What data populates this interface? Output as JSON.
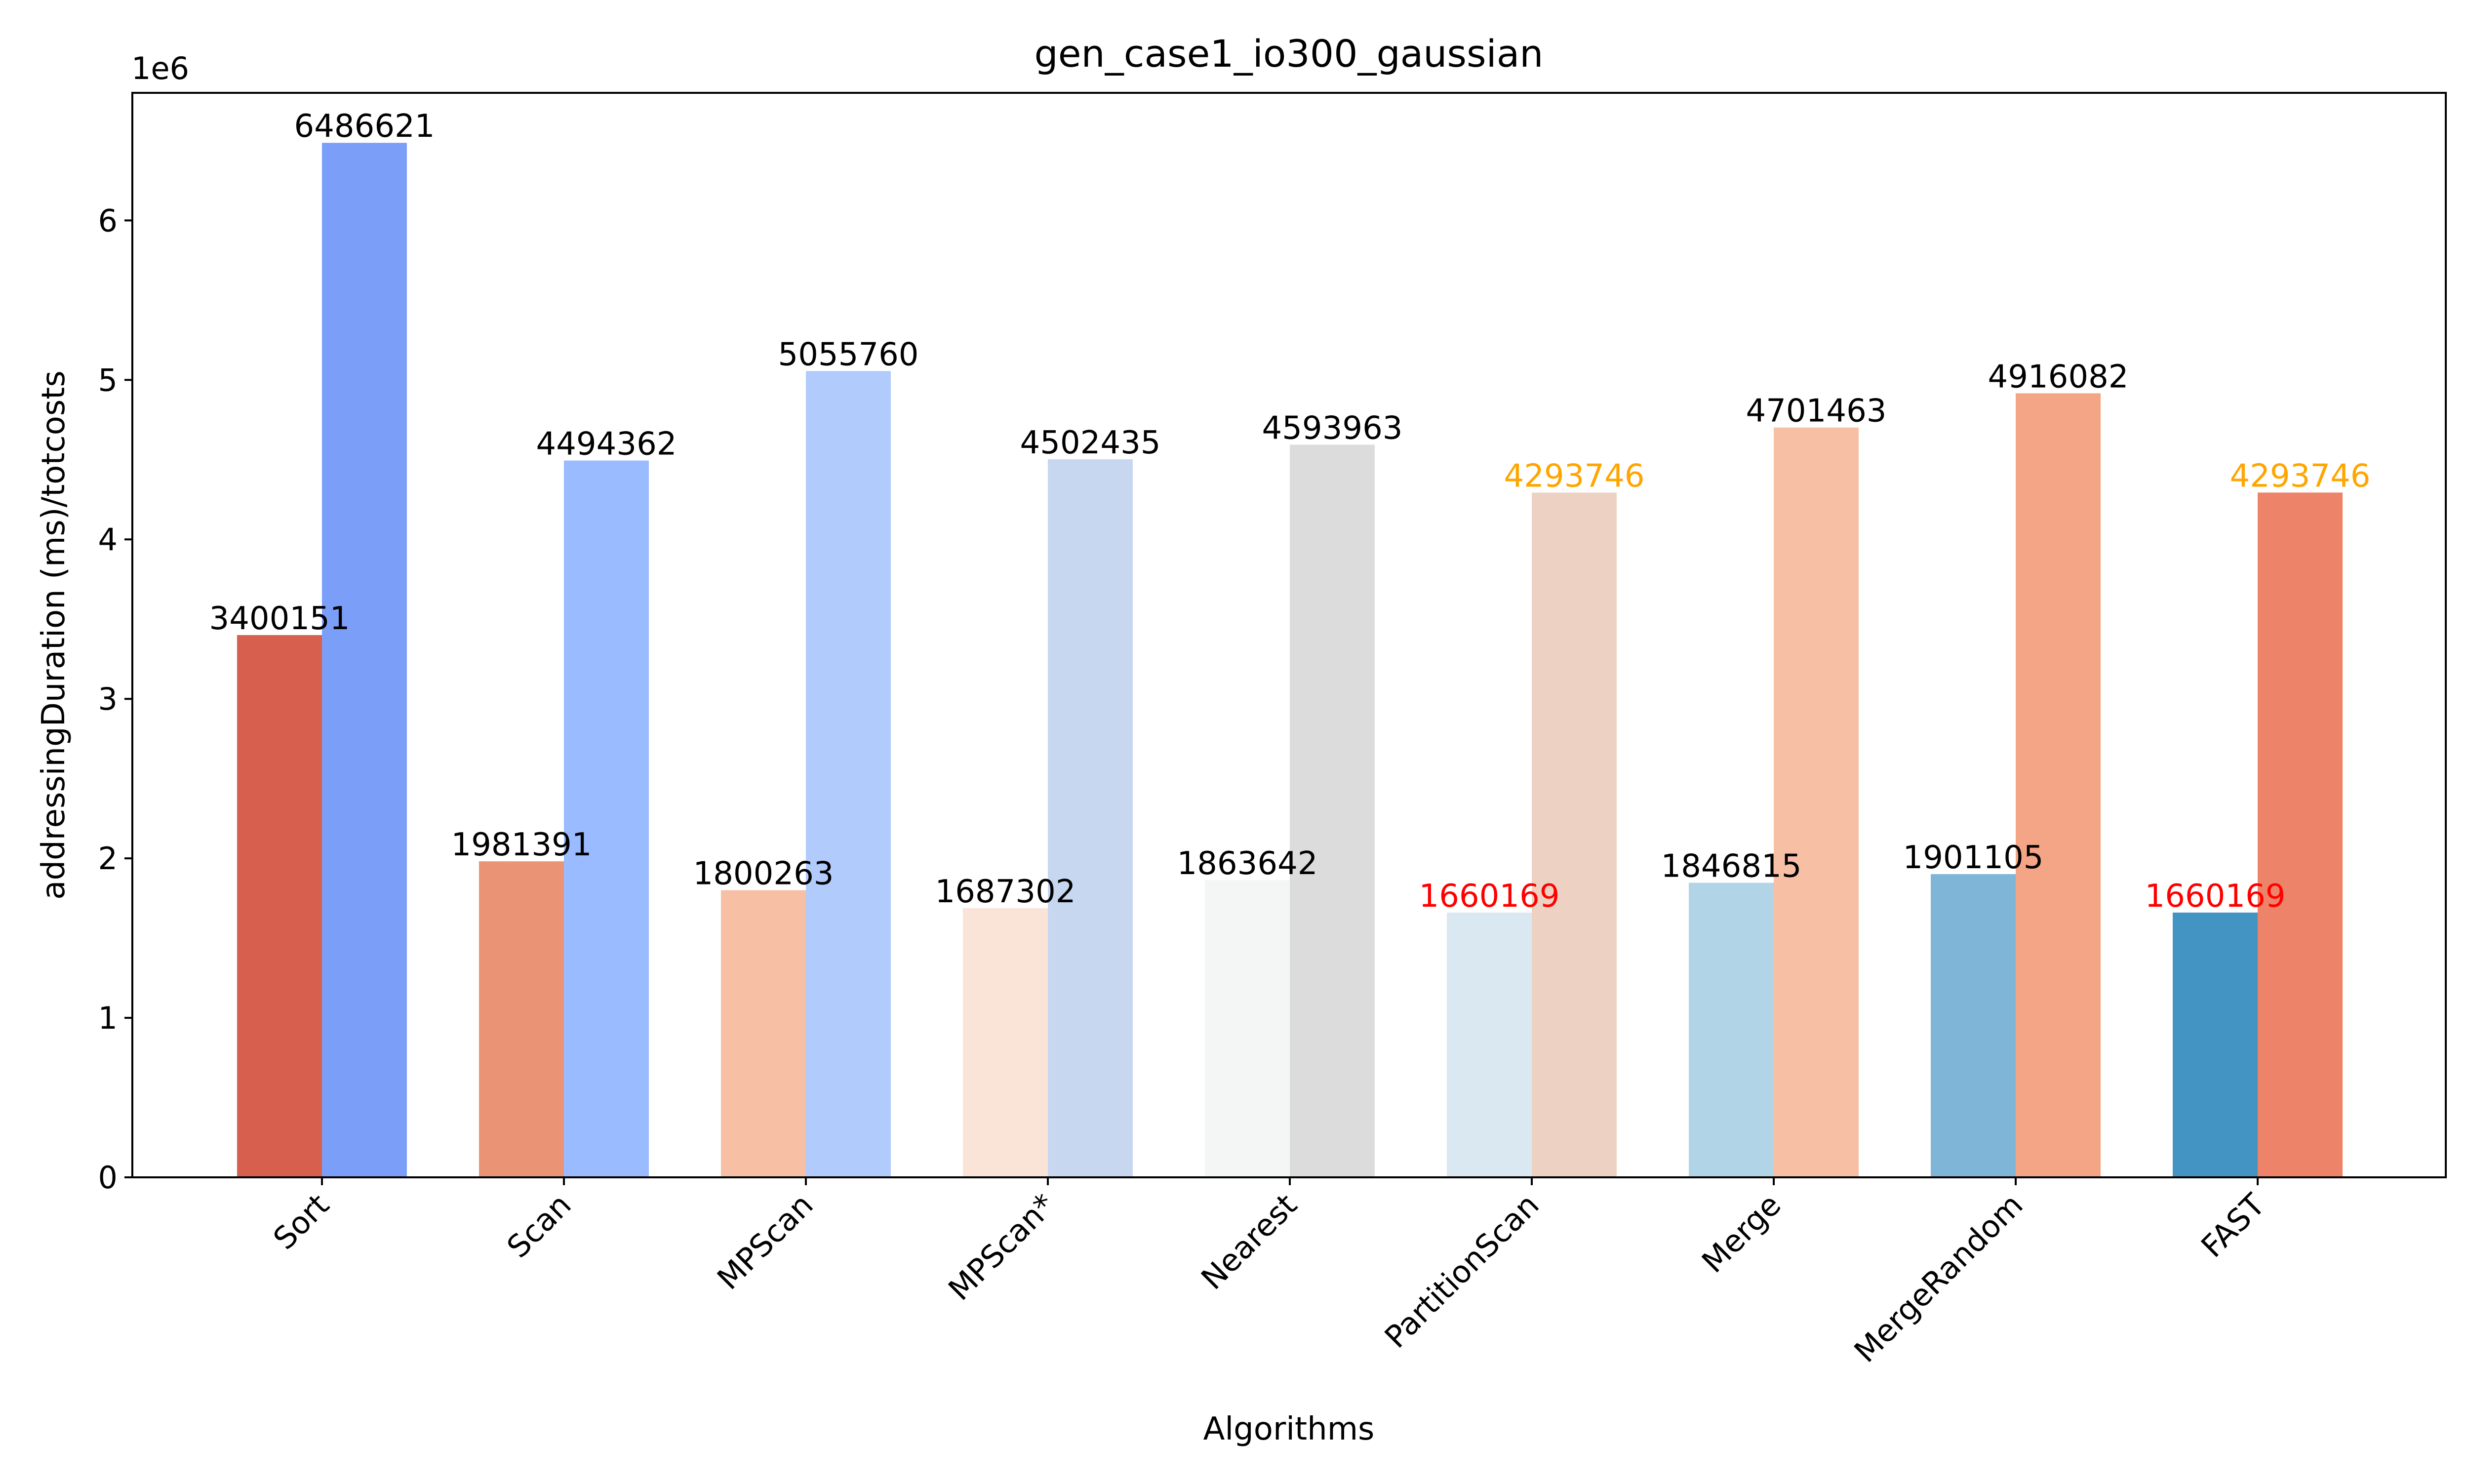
{
  "chart_data": {
    "type": "bar",
    "title": "gen_case1_io300_gaussian",
    "xlabel": "Algorithms",
    "ylabel": "addressingDuration (ms)/totcosts",
    "y_offset_label": "1e6",
    "ylim": [
      0,
      6800000
    ],
    "yticks": [
      0,
      1000000,
      2000000,
      3000000,
      4000000,
      5000000,
      6000000
    ],
    "ytick_labels": [
      "0",
      "1",
      "2",
      "3",
      "4",
      "5",
      "6"
    ],
    "grid": false,
    "categories": [
      "Sort",
      "Scan",
      "MPScan",
      "MPScan*",
      "Nearest",
      "PartitionScan",
      "Merge",
      "MergeRandom",
      "FAST"
    ],
    "series": [
      {
        "values": [
          3400151,
          1981391,
          1800263,
          1687302,
          1863642,
          1660169,
          1846815,
          1901105,
          1660169
        ],
        "colors": [
          "#d6604d",
          "#eb9475",
          "#f7bfa4",
          "#fae3d7",
          "#f4f6f6",
          "#dae8f1",
          "#b2d4e7",
          "#7fb5d6",
          "#4393c3"
        ],
        "label_colors": [
          "#000000",
          "#000000",
          "#000000",
          "#000000",
          "#000000",
          "#ff0000",
          "#000000",
          "#000000",
          "#ff0000"
        ]
      },
      {
        "values": [
          6486621,
          4494362,
          5055760,
          4502435,
          4593963,
          4293746,
          4701463,
          4916082,
          4293746
        ],
        "colors": [
          "#7b9ff9",
          "#9abbff",
          "#b0cbfc",
          "#c7d7f0",
          "#dcdcdc",
          "#edd2c3",
          "#f7bfa4",
          "#f4a585",
          "#ed8469"
        ],
        "label_colors": [
          "#000000",
          "#000000",
          "#000000",
          "#000000",
          "#000000",
          "#ffa500",
          "#000000",
          "#000000",
          "#ffa500"
        ]
      }
    ]
  }
}
